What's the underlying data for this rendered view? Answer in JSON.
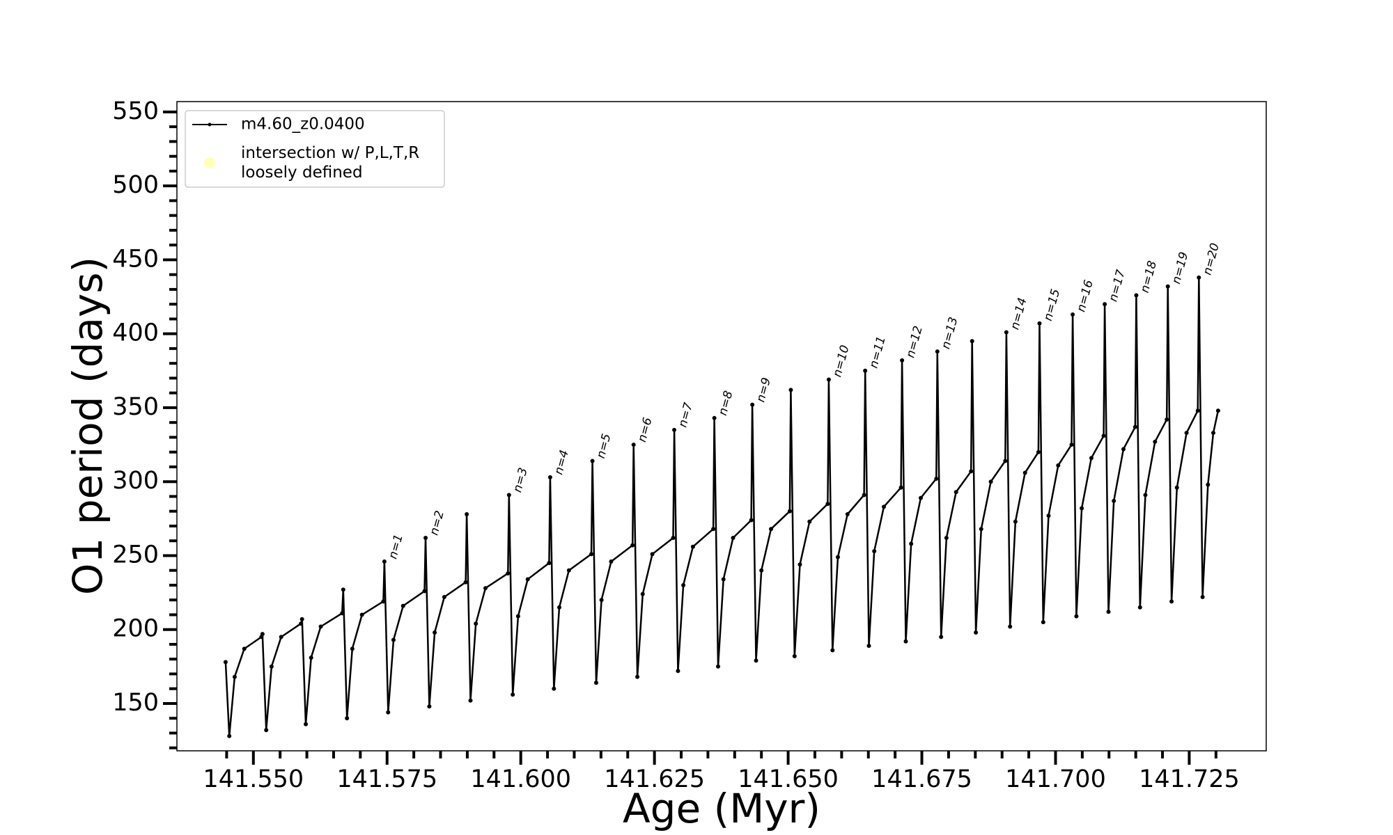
{
  "chart_data": {
    "type": "line",
    "xlabel": "Age (Myr)",
    "ylabel": "O1 period (days)",
    "xlim": [
      141.5357,
      141.7394
    ],
    "ylim": [
      118,
      557
    ],
    "xticks": [
      {
        "value": 141.55,
        "label": "141.550"
      },
      {
        "value": 141.575,
        "label": "141.575"
      },
      {
        "value": 141.6,
        "label": "141.600"
      },
      {
        "value": 141.625,
        "label": "141.625"
      },
      {
        "value": 141.65,
        "label": "141.650"
      },
      {
        "value": 141.675,
        "label": "141.675"
      },
      {
        "value": 141.7,
        "label": "141.700"
      },
      {
        "value": 141.725,
        "label": "141.725"
      }
    ],
    "xminorticks": [
      141.545,
      141.555,
      141.56,
      141.565,
      141.57,
      141.58,
      141.585,
      141.59,
      141.595,
      141.605,
      141.61,
      141.615,
      141.62,
      141.63,
      141.635,
      141.64,
      141.645,
      141.655,
      141.66,
      141.665,
      141.67,
      141.68,
      141.685,
      141.69,
      141.695,
      141.705,
      141.71,
      141.715,
      141.72,
      141.73
    ],
    "yticks": [
      150,
      200,
      250,
      300,
      350,
      400,
      450,
      500,
      550
    ],
    "yminorticks": [
      120,
      130,
      140,
      160,
      170,
      180,
      190,
      210,
      220,
      230,
      240,
      260,
      270,
      280,
      290,
      310,
      320,
      330,
      340,
      360,
      370,
      380,
      390,
      410,
      420,
      430,
      440,
      460,
      470,
      480,
      490,
      510,
      520,
      530,
      540
    ],
    "legend": "upper left",
    "series": [
      {
        "name": "m4.60_z0.0400",
        "color": "#000000",
        "x": [
          141.5448,
          141.5455,
          141.5465,
          141.5483,
          141.5515,
          141.5517,
          141.5524,
          141.5534,
          141.5552,
          141.5589,
          141.5591,
          141.5598,
          141.5608,
          141.5626,
          141.5666,
          141.5668,
          141.5675,
          141.5685,
          141.5703,
          141.5743,
          141.5745,
          141.5752,
          141.5762,
          141.578,
          141.582,
          141.5822,
          141.5829,
          141.5839,
          141.5857,
          141.5897,
          141.5899,
          141.5906,
          141.5916,
          141.5934,
          141.5976,
          141.5978,
          141.5985,
          141.5995,
          141.6013,
          141.6053,
          141.6055,
          141.6062,
          141.6072,
          141.609,
          141.6132,
          141.6134,
          141.6141,
          141.6151,
          141.6169,
          141.6209,
          141.6211,
          141.6218,
          141.6228,
          141.6246,
          141.6285,
          141.6287,
          141.6294,
          141.6304,
          141.6322,
          141.636,
          141.6362,
          141.6369,
          141.6379,
          141.6397,
          141.6431,
          141.6433,
          141.644,
          141.645,
          141.6468,
          141.6503,
          141.6505,
          141.6512,
          141.6522,
          141.654,
          141.6574,
          141.6576,
          141.6583,
          141.6593,
          141.6611,
          141.6642,
          141.6644,
          141.6651,
          141.6661,
          141.6679,
          141.6711,
          141.6713,
          141.672,
          141.673,
          141.6748,
          141.6777,
          141.6779,
          141.6786,
          141.6796,
          141.6814,
          141.6842,
          141.6844,
          141.6851,
          141.6861,
          141.6879,
          141.6906,
          141.6908,
          141.6915,
          141.6925,
          141.6943,
          141.6968,
          141.697,
          141.6977,
          141.6987,
          141.7005,
          141.703,
          141.7032,
          141.7039,
          141.7049,
          141.7067,
          141.709,
          141.7092,
          141.7099,
          141.7109,
          141.7127,
          141.7149,
          141.7151,
          141.7158,
          141.7168,
          141.7186,
          141.7208,
          141.721,
          141.7217,
          141.7227,
          141.7245,
          141.7266,
          141.7268,
          141.7275,
          141.7285,
          141.7295,
          141.7304
        ],
        "values": [
          178,
          128,
          168,
          187,
          195,
          197,
          132,
          175,
          195,
          204,
          207,
          136,
          181,
          202,
          211,
          227,
          140,
          187,
          210,
          219,
          246,
          144,
          193,
          216,
          226,
          262,
          148,
          198,
          222,
          232,
          278,
          152,
          204,
          228,
          238,
          291,
          156,
          209,
          234,
          245,
          303,
          160,
          215,
          240,
          251,
          314,
          164,
          220,
          246,
          257,
          325,
          168,
          224,
          251,
          262,
          335,
          172,
          230,
          256,
          268,
          343,
          175,
          234,
          262,
          274,
          352,
          179,
          240,
          268,
          280,
          362,
          182,
          244,
          273,
          285,
          369,
          186,
          249,
          278,
          291,
          375,
          189,
          253,
          283,
          296,
          382,
          192,
          258,
          289,
          302,
          388,
          195,
          262,
          293,
          307,
          395,
          198,
          268,
          300,
          314,
          401,
          202,
          273,
          306,
          320,
          407,
          205,
          277,
          311,
          325,
          413,
          209,
          282,
          316,
          331,
          420,
          212,
          287,
          322,
          337,
          426,
          215,
          291,
          327,
          342,
          432,
          219,
          296,
          333,
          348,
          438,
          222,
          298,
          333,
          348
        ]
      },
      {
        "name": "intersection w/ P,L,T,R\nloosely defined",
        "color": "#ffffb3",
        "x": [],
        "values": []
      }
    ],
    "annotations": [
      {
        "text": "n=1",
        "x": 141.5745,
        "y": 246
      },
      {
        "text": "n=2",
        "x": 141.5822,
        "y": 262
      },
      {
        "text": "n=3",
        "x": 141.5978,
        "y": 291
      },
      {
        "text": "n=4",
        "x": 141.6055,
        "y": 303
      },
      {
        "text": "n=5",
        "x": 141.6134,
        "y": 314
      },
      {
        "text": "n=6",
        "x": 141.6211,
        "y": 325
      },
      {
        "text": "n=7",
        "x": 141.6287,
        "y": 335
      },
      {
        "text": "n=8",
        "x": 141.6362,
        "y": 343
      },
      {
        "text": "n=9",
        "x": 141.6433,
        "y": 352
      },
      {
        "text": "n=10",
        "x": 141.6576,
        "y": 369
      },
      {
        "text": "n=11",
        "x": 141.6644,
        "y": 375
      },
      {
        "text": "n=12",
        "x": 141.6713,
        "y": 382
      },
      {
        "text": "n=13",
        "x": 141.6779,
        "y": 388
      },
      {
        "text": "n=14",
        "x": 141.6908,
        "y": 401
      },
      {
        "text": "n=15",
        "x": 141.697,
        "y": 407
      },
      {
        "text": "n=16",
        "x": 141.7032,
        "y": 413
      },
      {
        "text": "n=17",
        "x": 141.7092,
        "y": 420
      },
      {
        "text": "n=18",
        "x": 141.7151,
        "y": 426
      },
      {
        "text": "n=19",
        "x": 141.721,
        "y": 432
      },
      {
        "text": "n=20",
        "x": 141.7268,
        "y": 438
      }
    ]
  }
}
